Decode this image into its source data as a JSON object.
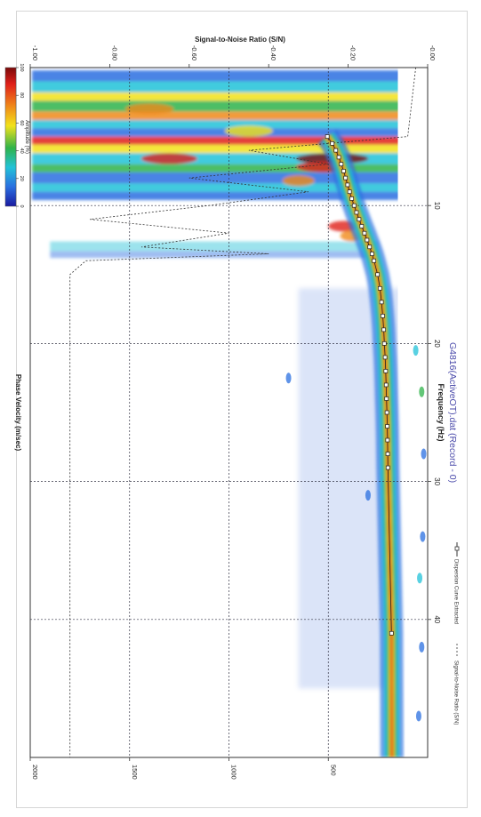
{
  "chart_data": {
    "type": "heatmap",
    "title": "G4816(ActiveOT).dat (Record - 0)",
    "xlabel": "Frequency (Hz)",
    "ylabel": "Phase Velocity (m/sec)",
    "y2label": "Signal-to-Noise Ratio (S/N)",
    "colorbar_label": "Amplitude (%)",
    "xlim": [
      0,
      50
    ],
    "ylim": [
      0,
      2000
    ],
    "y2lim": [
      0.0,
      1.0
    ],
    "x_ticks": [
      "10",
      "20",
      "30",
      "40"
    ],
    "y_ticks": [
      "2000",
      "1500",
      "1000",
      "500"
    ],
    "y2_ticks": [
      "-1.00",
      "-0.80",
      "-0.60",
      "-0.40",
      "-0.20",
      "-0.00"
    ],
    "colorbar_ticks": [
      "0",
      "20",
      "40",
      "60",
      "80",
      "100"
    ],
    "grid": true,
    "legend_position": "bottom",
    "legend": {
      "dispersion": "Dispersion Curve Extracted",
      "snr": "Signal-to-Noise Ratio (S/N)"
    },
    "colorscale": [
      "#1a1aa0",
      "#2a6fe0",
      "#22c2d8",
      "#2fb34a",
      "#f2e21a",
      "#f08a1a",
      "#e0201a",
      "#7a0a0a"
    ],
    "series": [
      {
        "name": "Dispersion Curve Extracted",
        "x": [
          5.0,
          5.5,
          6.0,
          6.5,
          7.0,
          7.5,
          8.0,
          8.5,
          9.0,
          9.5,
          10.0,
          10.5,
          11.0,
          11.5,
          12.0,
          12.5,
          13.0,
          13.5,
          14.0,
          15.0,
          16.0,
          17.0,
          18.0,
          19.0,
          20.0,
          21.0,
          22.0,
          23.0,
          24.0,
          25.0,
          26.0,
          27.0,
          28.0,
          29.0,
          41.0
        ],
        "y": [
          505,
          480,
          462,
          447,
          435,
          423,
          413,
          403,
          393,
          382,
          370,
          358,
          345,
          332,
          318,
          305,
          292,
          280,
          270,
          252,
          240,
          232,
          226,
          221,
          218,
          214,
          211,
          209,
          207,
          205,
          203,
          202,
          201,
          200,
          182
        ]
      },
      {
        "name": "Signal-to-Noise Ratio (S/N)",
        "x": [
          0.0,
          5.0,
          6.0,
          7.0,
          8.0,
          9.0,
          10.0,
          11.0,
          12.0,
          13.0,
          13.5,
          14.0,
          15.0,
          20.0,
          30.0,
          40.0,
          50.0
        ],
        "y": [
          0.03,
          0.05,
          0.45,
          0.25,
          0.6,
          0.3,
          0.55,
          0.85,
          0.5,
          0.72,
          0.4,
          0.86,
          0.9,
          0.9,
          0.9,
          0.9,
          0.9
        ]
      }
    ]
  }
}
